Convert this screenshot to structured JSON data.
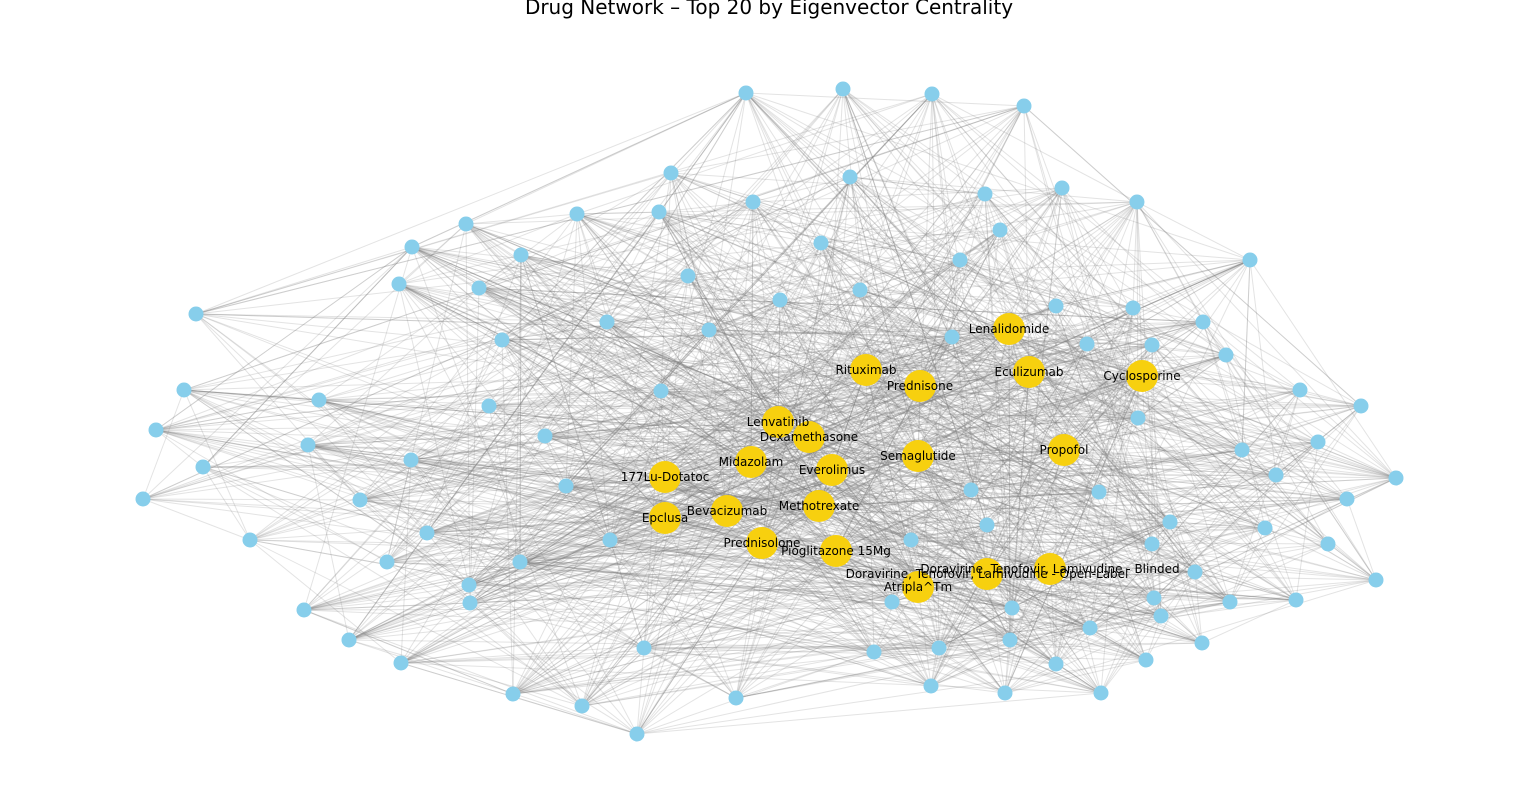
{
  "figure": {
    "title": "Drug Network – Top 20 by Eigenvector Centrality"
  },
  "colors": {
    "top_node": "#f7d00f",
    "other_node": "#87ceeb",
    "edge": "#808080",
    "background": "#ffffff"
  },
  "legend": "none",
  "top_nodes": [
    "Lenalidomide",
    "Rituximab",
    "Eculizumab",
    "Cyclosporine",
    "Prednisone",
    "Lenvatinib",
    "Dexamethasone",
    "Propofol",
    "Midazolam",
    "Semaglutide",
    "Everolimus",
    "177Lu-Dotatoc",
    "Methotrexate",
    "Bevacizumab",
    "Epclusa",
    "Prednisolone",
    "Pioglitazone 15Mg",
    "Doravirine, Tenofovir, Lamivudine - Blinded",
    "Doravirine, Tenofovir, Lamivudine - Open-Label",
    "Atripla^Tm"
  ],
  "other_node_count": 96
}
